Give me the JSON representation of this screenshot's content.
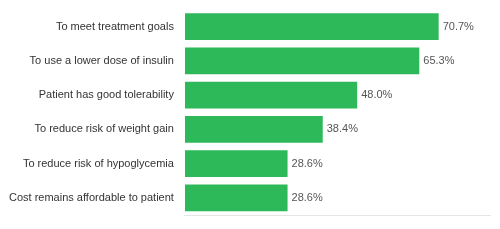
{
  "chart_data": {
    "type": "bar",
    "orientation": "horizontal",
    "categories": [
      "Cost remains affordable to patient",
      "To reduce risk of hypoglycemia",
      "To reduce risk of weight gain",
      "Patient has good tolerability",
      "To use a lower dose of insulin",
      "To meet treatment goals"
    ],
    "values": [
      28.6,
      28.6,
      38.4,
      48.0,
      65.3,
      70.7
    ],
    "value_labels": [
      "28.6%",
      "28.6%",
      "38.4%",
      "48.0%",
      "65.3%",
      "70.7%"
    ],
    "color": "#2db85a",
    "xlim": [
      0,
      85
    ],
    "data_labels": true,
    "tick_labels": "y",
    "grid": false
  }
}
